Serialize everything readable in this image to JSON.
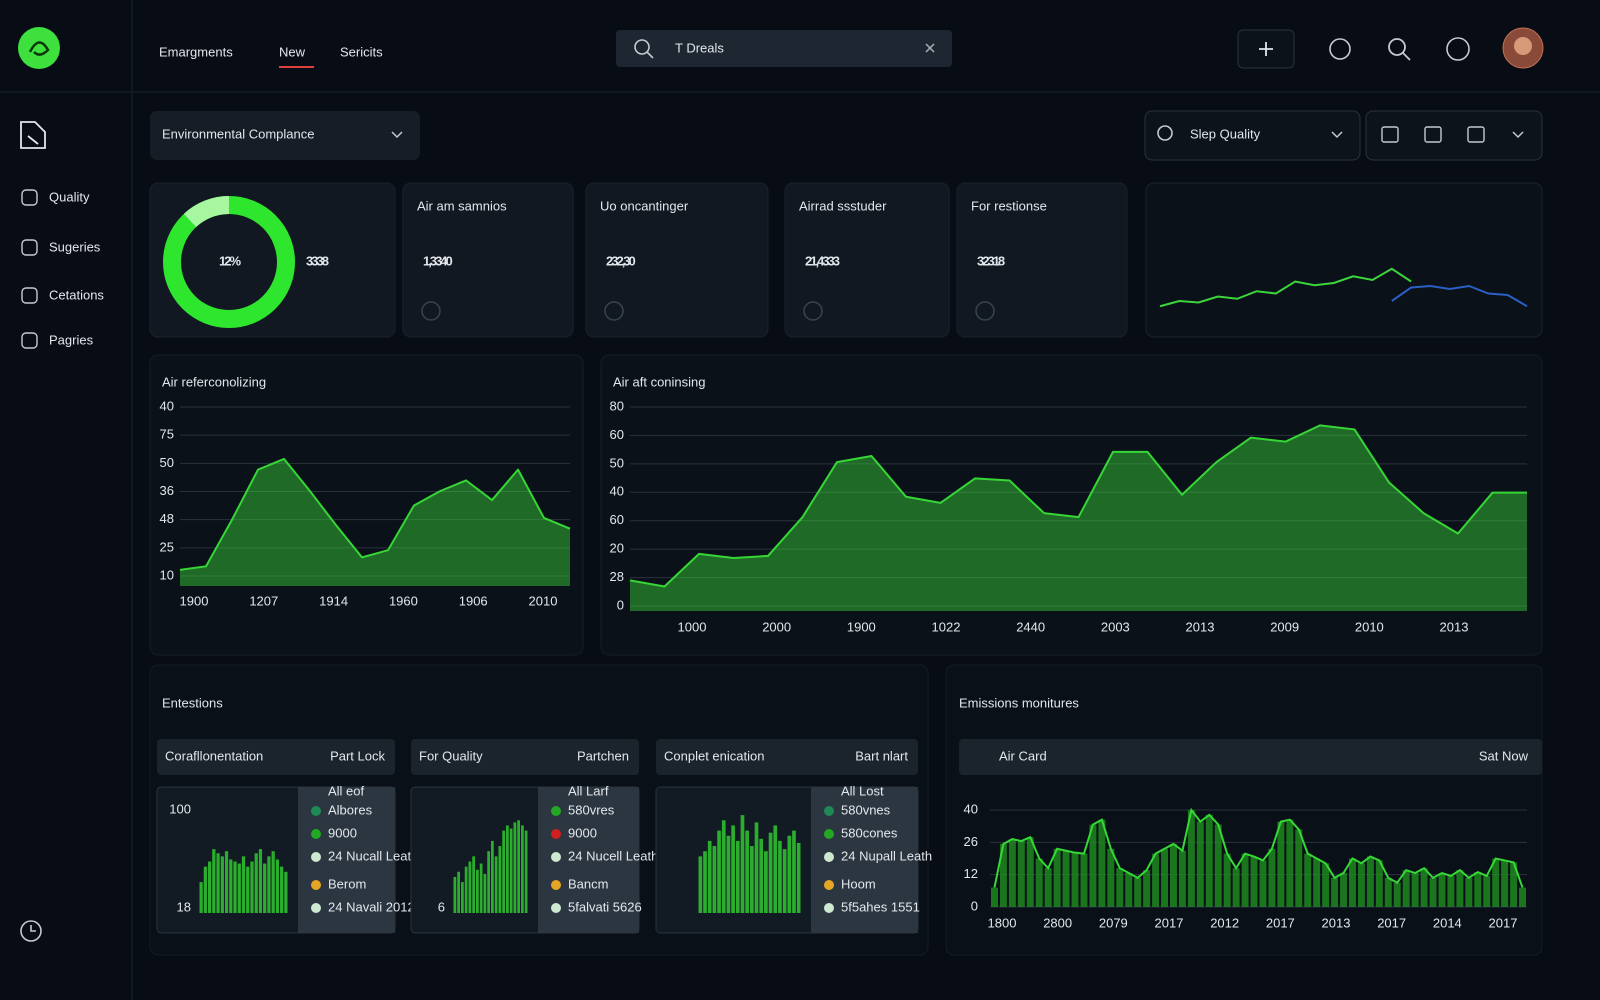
{
  "nav": {
    "items": [
      "Emargments",
      "New",
      "Sericits"
    ],
    "search": "T Dreals"
  },
  "sidebar": [
    "Quality",
    "Sugeries",
    "Cetations",
    "Pagries"
  ],
  "filters": {
    "left": "Environmental Complance",
    "right": "Slep Quality"
  },
  "kpis": [
    {
      "value": "3338"
    },
    {
      "label": "Air am samnios",
      "value": "1,3340"
    },
    {
      "label": "Uo oncantinger",
      "value": "232,30"
    },
    {
      "label": "Airrad ssstuder",
      "value": "21,4333"
    },
    {
      "label": "For restionse",
      "value": "32318"
    }
  ],
  "sections": {
    "left": "Entestions",
    "right": "Emissions monitures"
  },
  "chart_data": [
    {
      "type": "donut",
      "values": [
        12
      ],
      "value_labels": [
        "12%"
      ],
      "color": "#2ee62e",
      "highlight": "#a6f7a0"
    },
    {
      "type": "sparkline",
      "ylim": [
        0,
        100
      ],
      "series": [
        {
          "color": "#3bd63b",
          "values": [
            5,
            12,
            10,
            18,
            15,
            25,
            22,
            38,
            33,
            36,
            45,
            40,
            55,
            38,
            null,
            null,
            null,
            null,
            null,
            null
          ]
        },
        {
          "color": "#2a5fc4",
          "values": [
            null,
            null,
            null,
            null,
            null,
            null,
            null,
            null,
            null,
            null,
            null,
            null,
            12,
            30,
            32,
            28,
            32,
            22,
            20,
            5
          ]
        }
      ]
    },
    {
      "type": "area",
      "title": "Air referconolizing",
      "color": "#37d637",
      "ylim": [
        0,
        100
      ],
      "y_labels": [
        "40",
        "75",
        "50",
        "36",
        "48",
        "25",
        "10"
      ],
      "x_labels": [
        "1900",
        "1207",
        "1914",
        "1960",
        "1906",
        "2010"
      ],
      "values": [
        9,
        11,
        37,
        65,
        71,
        53,
        34,
        16,
        20,
        45,
        53,
        59,
        48,
        65,
        38,
        32
      ]
    },
    {
      "type": "area",
      "title": "Air aft coninsing",
      "color": "#37d637",
      "ylim": [
        0,
        100
      ],
      "y_labels": [
        "80",
        "60",
        "50",
        "40",
        "60",
        "20",
        "28",
        "0"
      ],
      "x_labels": [
        "1000",
        "2000",
        "1900",
        "1022",
        "2440",
        "2003",
        "2013",
        "2009",
        "2010",
        "2013"
      ],
      "values": [
        15,
        12,
        28,
        26,
        27,
        46,
        73,
        76,
        56,
        53,
        65,
        64,
        48,
        46,
        78,
        78,
        57,
        73,
        85,
        83,
        91,
        89,
        63,
        48,
        38,
        58,
        58
      ]
    },
    {
      "type": "mini-bar",
      "title": "Corafllonentation",
      "note": "Part Lock",
      "color": "#2fbf2f",
      "ylim": [
        0,
        100
      ],
      "y_labels": [
        "100",
        "18"
      ],
      "legend_title": "All eof",
      "legend": [
        {
          "name": "Albores",
          "color": "#1f8a55"
        },
        {
          "name": "9000",
          "color": "#23a823"
        },
        {
          "name": "24 Nucall Leath",
          "color": "#cfe8d0"
        },
        {
          "name": "Berom",
          "color": "#e7a526"
        },
        {
          "name": "24 Navali 2012",
          "color": "#cfe8d0"
        }
      ],
      "values": [
        30,
        45,
        50,
        62,
        58,
        55,
        60,
        52,
        50,
        48,
        55,
        45,
        50,
        58,
        62,
        48,
        55,
        60,
        52,
        45,
        40
      ]
    },
    {
      "type": "mini-bar",
      "title": "For Quality",
      "note": "Partchen",
      "color": "#2fbf2f",
      "ylim": [
        0,
        100
      ],
      "y_labels": [
        "6"
      ],
      "legend_title": "All Larf",
      "legend": [
        {
          "name": "580vres",
          "color": "#23a823"
        },
        {
          "name": "9000",
          "color": "#d01f1f"
        },
        {
          "name": "24 Nucell Leath",
          "color": "#cfe8d0"
        },
        {
          "name": "Bancm",
          "color": "#e7a526"
        },
        {
          "name": "5falvati 5626",
          "color": "#cfe8d0"
        }
      ],
      "values": [
        35,
        40,
        30,
        45,
        50,
        55,
        42,
        48,
        38,
        60,
        70,
        55,
        65,
        80,
        85,
        82,
        88,
        90,
        85,
        80
      ]
    },
    {
      "type": "mini-bar",
      "title": "Conplet enication",
      "note": "Bart nlart",
      "color": "#2fbf2f",
      "ylim": [
        0,
        100
      ],
      "y_labels": [],
      "legend_title": "All Lost",
      "legend": [
        {
          "name": "580vnes",
          "color": "#1f8a55"
        },
        {
          "name": "580cones",
          "color": "#23a823"
        },
        {
          "name": "24 Nupall Leath",
          "color": "#cfe8d0"
        },
        {
          "name": "Hoom",
          "color": "#e7a526"
        },
        {
          "name": "5f5ahes 1551",
          "color": "#cfe8d0"
        }
      ],
      "values": [
        55,
        60,
        70,
        65,
        80,
        90,
        75,
        85,
        70,
        95,
        80,
        65,
        88,
        72,
        60,
        78,
        85,
        70,
        62,
        75,
        80,
        68
      ]
    },
    {
      "type": "bar-line",
      "title": "Air Card",
      "note": "Sat Now",
      "color": "#1f8f1f",
      "line_color": "#36d836",
      "ylim": [
        0,
        100
      ],
      "y_labels": [
        "40",
        "26",
        "12",
        "0"
      ],
      "x_labels": [
        "1800",
        "2800",
        "2079",
        "2017",
        "2012",
        "2017",
        "2013",
        "2017",
        "2014",
        "2017"
      ],
      "values": [
        20,
        65,
        70,
        68,
        72,
        50,
        40,
        60,
        58,
        56,
        55,
        85,
        90,
        60,
        40,
        35,
        30,
        38,
        55,
        60,
        65,
        58,
        100,
        88,
        95,
        85,
        55,
        40,
        55,
        52,
        48,
        60,
        88,
        90,
        80,
        55,
        50,
        45,
        30,
        35,
        50,
        45,
        52,
        48,
        30,
        25,
        38,
        35,
        40,
        30,
        35,
        32,
        38,
        30,
        36,
        32,
        50,
        48,
        46,
        20
      ]
    }
  ]
}
